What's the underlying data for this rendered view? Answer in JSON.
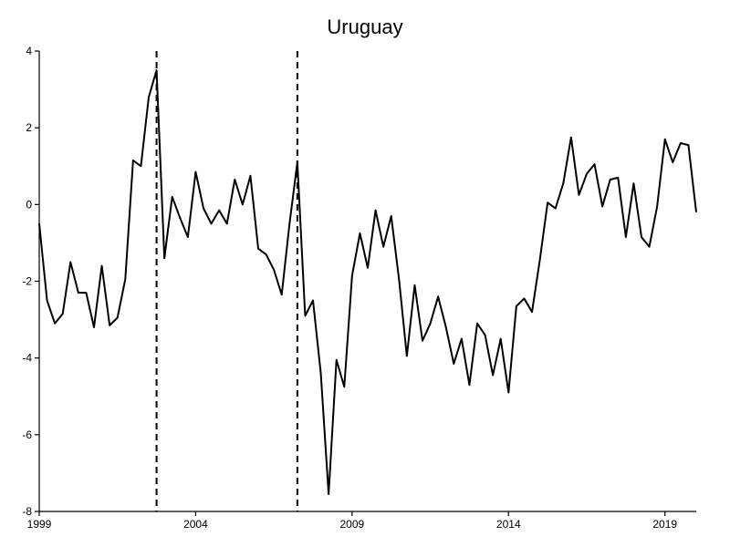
{
  "chart_data": {
    "type": "line",
    "title": "Uruguay",
    "xlabel": "",
    "ylabel": "",
    "xlim": [
      1999.0,
      2020.0
    ],
    "ylim": [
      -8,
      4
    ],
    "x_ticks": [
      1999,
      2004,
      2009,
      2014,
      2019
    ],
    "y_ticks": [
      4,
      2,
      0,
      -2,
      -4,
      -6,
      -8
    ],
    "grid": false,
    "legend": "none",
    "vertical_lines": [
      2002.75,
      2007.25
    ],
    "series": [
      {
        "color": "#000000",
        "style": "solid",
        "x": [
          1999.0,
          1999.25,
          1999.5,
          1999.75,
          2000.0,
          2000.25,
          2000.5,
          2000.75,
          2001.0,
          2001.25,
          2001.5,
          2001.75,
          2002.0,
          2002.25,
          2002.5,
          2002.75,
          2003.0,
          2003.25,
          2003.5,
          2003.75,
          2004.0,
          2004.25,
          2004.5,
          2004.75,
          2005.0,
          2005.25,
          2005.5,
          2005.75,
          2006.0,
          2006.25,
          2006.5,
          2006.75,
          2007.0,
          2007.25,
          2007.5,
          2007.75,
          2008.0,
          2008.25,
          2008.5,
          2008.75,
          2009.0,
          2009.25,
          2009.5,
          2009.75,
          2010.0,
          2010.25,
          2010.5,
          2010.75,
          2011.0,
          2011.25,
          2011.5,
          2011.75,
          2012.0,
          2012.25,
          2012.5,
          2012.75,
          2013.0,
          2013.25,
          2013.5,
          2013.75,
          2014.0,
          2014.25,
          2014.5,
          2014.75,
          2015.0,
          2015.25,
          2015.5,
          2015.75,
          2016.0,
          2016.25,
          2016.5,
          2016.75,
          2017.0,
          2017.25,
          2017.5,
          2017.75,
          2018.0,
          2018.25,
          2018.5,
          2018.75,
          2019.0,
          2019.25,
          2019.5,
          2019.75,
          2020.0
        ],
        "y": [
          -0.5,
          -2.5,
          -3.1,
          -2.85,
          -1.5,
          -2.3,
          -2.3,
          -3.2,
          -1.6,
          -3.15,
          -2.95,
          -1.95,
          1.15,
          1.0,
          2.8,
          3.5,
          -1.4,
          0.2,
          -0.35,
          -0.85,
          0.85,
          -0.1,
          -0.5,
          -0.15,
          -0.5,
          0.65,
          0.0,
          0.75,
          -1.15,
          -1.3,
          -1.7,
          -2.35,
          -0.5,
          1.1,
          -2.9,
          -2.5,
          -4.4,
          -7.55,
          -4.05,
          -4.75,
          -1.85,
          -0.75,
          -1.65,
          -0.15,
          -1.1,
          -0.3,
          -1.95,
          -3.95,
          -2.1,
          -3.55,
          -3.1,
          -2.4,
          -3.2,
          -4.15,
          -3.5,
          -4.7,
          -3.1,
          -3.4,
          -4.45,
          -3.5,
          -4.9,
          -2.65,
          -2.45,
          -2.8,
          -1.45,
          0.05,
          -0.1,
          0.55,
          1.75,
          0.25,
          0.8,
          1.05,
          -0.05,
          0.65,
          0.7,
          -0.85,
          0.55,
          -0.85,
          -1.1,
          -0.05,
          1.7,
          1.1,
          1.6,
          1.55,
          -0.2
        ]
      }
    ]
  }
}
